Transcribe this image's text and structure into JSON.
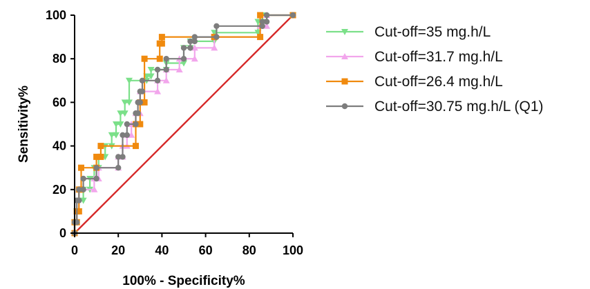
{
  "chart_data": {
    "type": "line",
    "title": "",
    "xlabel": "100% - Specificity%",
    "ylabel": "Sensitivity%",
    "xlim": [
      0,
      100
    ],
    "ylim": [
      0,
      100
    ],
    "xticks": [
      "0",
      "20",
      "40",
      "60",
      "80",
      "100"
    ],
    "yticks": [
      "0",
      "20",
      "40",
      "60",
      "80",
      "100"
    ],
    "grid": false,
    "legend_position": "right",
    "reference_line": {
      "x": [
        0,
        100
      ],
      "y": [
        0,
        100
      ],
      "color": "#d62a2a"
    },
    "series": [
      {
        "name": "Cut-off=35 mg.h/L",
        "color": "#7be089",
        "marker": "triangle-down",
        "x": [
          0,
          0,
          1,
          1,
          2,
          2,
          4,
          4,
          7,
          7,
          9,
          9,
          11,
          11,
          14,
          14,
          17,
          17,
          19,
          19,
          21,
          21,
          23,
          23,
          25,
          25,
          33,
          33,
          35,
          35,
          42,
          42,
          50,
          50,
          53,
          53,
          64,
          64,
          84,
          84,
          86,
          86,
          100
        ],
        "y": [
          0,
          5,
          5,
          10,
          10,
          15,
          15,
          20,
          20,
          25,
          25,
          30,
          30,
          35,
          35,
          40,
          40,
          45,
          45,
          50,
          50,
          55,
          55,
          60,
          60,
          70,
          70,
          72,
          72,
          75,
          75,
          78,
          78,
          85,
          85,
          88,
          88,
          92,
          92,
          97,
          97,
          100,
          100
        ]
      },
      {
        "name": "Cut-off=31.7 mg.h/L",
        "color": "#f2a6ec",
        "marker": "triangle-up",
        "x": [
          0,
          0,
          1,
          1,
          2,
          2,
          9,
          9,
          11,
          11,
          20,
          20,
          22,
          22,
          24,
          24,
          26,
          26,
          28,
          28,
          30,
          30,
          38,
          38,
          42,
          42,
          48,
          48,
          55,
          55,
          64,
          64,
          85,
          85,
          88,
          88,
          100
        ],
        "y": [
          0,
          5,
          5,
          10,
          10,
          20,
          20,
          25,
          25,
          30,
          30,
          35,
          35,
          40,
          40,
          45,
          45,
          50,
          50,
          55,
          55,
          65,
          65,
          70,
          70,
          75,
          75,
          80,
          80,
          85,
          85,
          90,
          90,
          95,
          95,
          100,
          100
        ]
      },
      {
        "name": "Cut-off=26.4 mg.h/L",
        "color": "#f08a0e",
        "marker": "square",
        "x": [
          0,
          0,
          1,
          1,
          2,
          2,
          3,
          3,
          10,
          10,
          12,
          12,
          28,
          28,
          30,
          30,
          32,
          32,
          39,
          39,
          40,
          40,
          64,
          64,
          85,
          85,
          100
        ],
        "y": [
          0,
          5,
          5,
          10,
          10,
          20,
          20,
          30,
          30,
          35,
          35,
          40,
          40,
          50,
          50,
          60,
          60,
          80,
          80,
          87,
          87,
          90,
          90,
          90,
          90,
          100,
          100
        ]
      },
      {
        "name": "Cut-off=30.75 mg.h/L (Q1)",
        "color": "#7d7d7d",
        "marker": "circle",
        "x": [
          0,
          0,
          1,
          1,
          2,
          2,
          4,
          4,
          10,
          10,
          20,
          20,
          22,
          22,
          24,
          24,
          28,
          28,
          29,
          29,
          30,
          30,
          31,
          31,
          38,
          38,
          42,
          42,
          50,
          50,
          53,
          53,
          55,
          55,
          65,
          65,
          86,
          86,
          88,
          88,
          100
        ],
        "y": [
          0,
          5,
          5,
          15,
          15,
          20,
          20,
          25,
          25,
          30,
          30,
          35,
          35,
          45,
          45,
          50,
          50,
          55,
          55,
          60,
          60,
          65,
          65,
          70,
          70,
          75,
          75,
          80,
          80,
          85,
          85,
          88,
          88,
          90,
          90,
          95,
          95,
          97,
          97,
          100,
          100
        ]
      }
    ]
  }
}
